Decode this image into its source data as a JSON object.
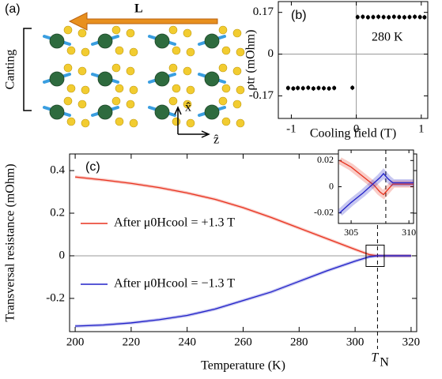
{
  "panel_a": {
    "label": "(a)",
    "vector": "L",
    "bracket": "Canting",
    "axis_up": "x̂",
    "axis_right": "ẑ"
  },
  "chart_data": [
    {
      "type": "scatter",
      "panel_label": "(b)",
      "annotation": "280 K",
      "x_label": "Cooling field (T)",
      "y_label": "ρtr (mOhm)",
      "x": [
        -1.05,
        -0.97,
        -0.9,
        -0.82,
        -0.74,
        -0.66,
        -0.58,
        -0.5,
        -0.42,
        -0.34,
        -0.06,
        0.02,
        0.1,
        0.18,
        0.26,
        0.34,
        0.42,
        0.5,
        0.58,
        0.66,
        0.74,
        0.82,
        0.9,
        0.98,
        1.05
      ],
      "values": [
        -0.138,
        -0.14,
        -0.138,
        -0.139,
        -0.137,
        -0.14,
        -0.138,
        -0.139,
        -0.14,
        -0.138,
        -0.137,
        0.151,
        0.152,
        0.15,
        0.151,
        0.152,
        0.151,
        0.15,
        0.152,
        0.151,
        0.15,
        0.151,
        0.152,
        0.151,
        0.15
      ],
      "color": "#000000",
      "xlim": [
        -1.2,
        1.1
      ],
      "xticks": [
        -1,
        0,
        1
      ],
      "ylim": [
        -0.262,
        0.214
      ],
      "yticks": [
        -0.17,
        0,
        0.17
      ],
      "zero_lines": true
    },
    {
      "type": "line",
      "panel_label": "(c)",
      "x_label": "Temperature (K)",
      "y_label": "Transversal resistance (mOhm)",
      "x": [
        200,
        210,
        220,
        230,
        240,
        250,
        260,
        270,
        280,
        290,
        300,
        305,
        308,
        310,
        315,
        320
      ],
      "series": [
        {
          "name": "After μ0Hcool = +1.3 T",
          "color": "#e8321e",
          "values": [
            0.37,
            0.356,
            0.34,
            0.32,
            0.295,
            0.265,
            0.226,
            0.18,
            0.13,
            0.08,
            0.03,
            0.006,
            0.0,
            0.0,
            0.0,
            0.0
          ]
        },
        {
          "name": "After μ0Hcool = −1.3 T",
          "color": "#2020c8",
          "values": [
            -0.33,
            -0.325,
            -0.315,
            -0.3,
            -0.28,
            -0.25,
            -0.21,
            -0.17,
            -0.12,
            -0.07,
            -0.025,
            -0.005,
            0.0,
            0.0,
            0.0,
            0.0
          ]
        }
      ],
      "xlim": [
        198,
        322
      ],
      "xticks": [
        200,
        220,
        240,
        260,
        280,
        300,
        320
      ],
      "ylim": [
        -0.356,
        0.478
      ],
      "yticks": [
        -0.2,
        0,
        0.2,
        0.4
      ],
      "zero_lines": true,
      "marker_line": 308,
      "marker_label": "T",
      "marker_sub": "N"
    },
    {
      "type": "line",
      "x": [
        304,
        305,
        306,
        307,
        307.5,
        307.8,
        308.2,
        308.6,
        309,
        310.4
      ],
      "series": [
        {
          "color": "#e8321e",
          "values": [
            0.02,
            0.015,
            0.008,
            0.001,
            -0.004,
            -0.006,
            -0.002,
            0.002,
            0.002,
            0.002
          ]
        },
        {
          "color": "#2020c8",
          "values": [
            -0.02,
            -0.012,
            -0.005,
            0.003,
            0.007,
            0.01,
            0.006,
            0.003,
            0.003,
            0.003
          ]
        }
      ],
      "xlim": [
        303.9,
        310.4
      ],
      "xticks": [
        305,
        310
      ],
      "ylim": [
        -0.028,
        0.028
      ],
      "yticks": [
        -0.02,
        0,
        0.02
      ],
      "marker_line": 308
    }
  ]
}
